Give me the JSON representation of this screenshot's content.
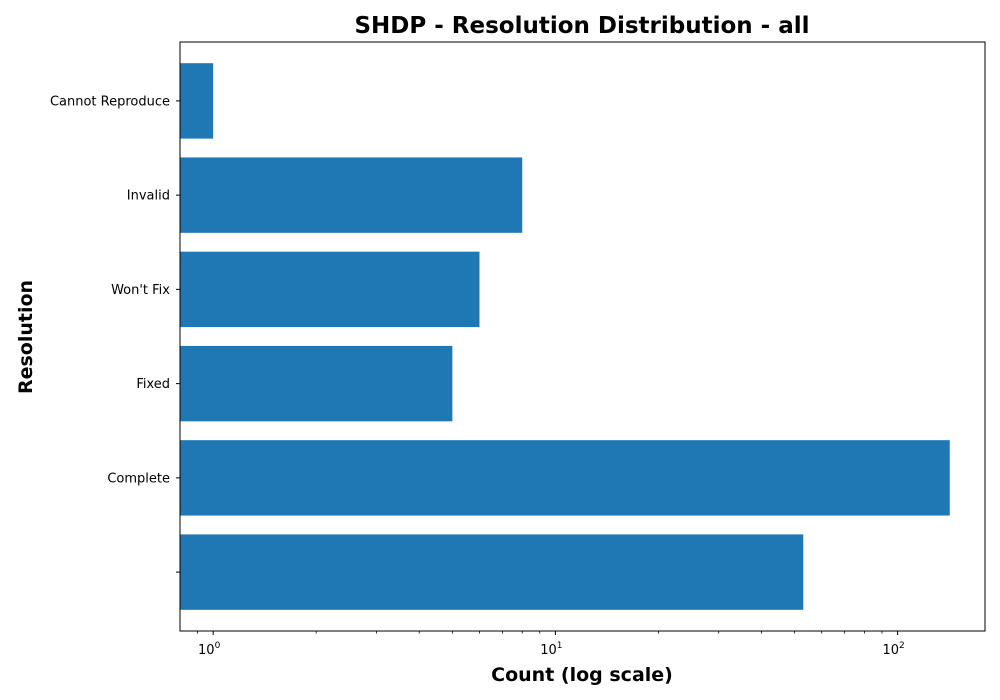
{
  "chart_data": {
    "type": "bar",
    "orientation": "horizontal",
    "title": "SHDP - Resolution Distribution - all",
    "xlabel": "Count (log scale)",
    "ylabel": "Resolution",
    "x_scale": "log",
    "xlim": [
      0.8,
      180
    ],
    "x_tick_labels": [
      {
        "base": "10",
        "exp": "0",
        "value": 1
      },
      {
        "base": "10",
        "exp": "1",
        "value": 10
      },
      {
        "base": "10",
        "exp": "2",
        "value": 100
      }
    ],
    "categories": [
      "Cannot Reproduce",
      "Invalid",
      "Won't Fix",
      "Fixed",
      "Complete",
      ""
    ],
    "values": [
      1,
      8,
      6,
      5,
      142,
      53
    ],
    "bar_color": "#1f77b4",
    "grid": false,
    "legend": "none"
  }
}
